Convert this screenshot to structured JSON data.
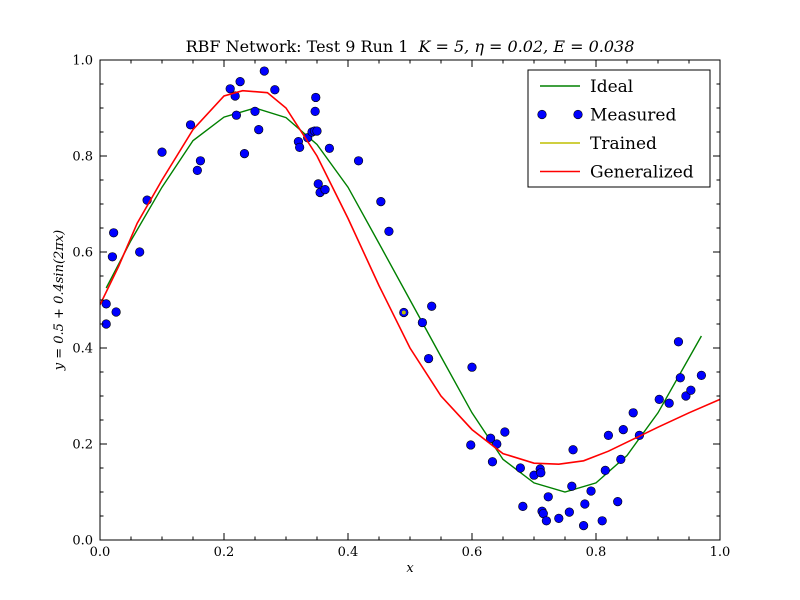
{
  "chart_data": {
    "type": "line",
    "title_prefix": "RBF Network: Test 9 Run 1",
    "title_math": "K = 5, η = 0.02, E = 0.038",
    "xlabel": "x",
    "ylabel": "y = 0.5 + 0.4sin(2πx)",
    "xlim": [
      0.0,
      1.0
    ],
    "ylim": [
      0.0,
      1.0
    ],
    "xticks": [
      "0.0",
      "0.2",
      "0.4",
      "0.6",
      "0.8",
      "1.0"
    ],
    "yticks": [
      "0.0",
      "0.2",
      "0.4",
      "0.6",
      "0.8",
      "1.0"
    ],
    "grid": false,
    "legend_position": "top-right",
    "legend": [
      "Ideal",
      "Measured",
      "Trained",
      "Generalized"
    ],
    "colors": {
      "ideal": "#008000",
      "measured": "#0000ff",
      "trained": "#bfbf00",
      "generalized": "#ff0000"
    },
    "series": [
      {
        "name": "Ideal",
        "type": "line",
        "x": [
          0.01,
          0.05,
          0.1,
          0.15,
          0.2,
          0.25,
          0.3,
          0.35,
          0.4,
          0.45,
          0.5,
          0.55,
          0.6,
          0.65,
          0.7,
          0.75,
          0.8,
          0.85,
          0.9,
          0.97
        ],
        "y": [
          0.525,
          0.624,
          0.735,
          0.832,
          0.881,
          0.9,
          0.88,
          0.824,
          0.735,
          0.618,
          0.5,
          0.382,
          0.265,
          0.168,
          0.119,
          0.1,
          0.119,
          0.176,
          0.265,
          0.425
        ]
      },
      {
        "name": "Generalized",
        "type": "line",
        "x": [
          0.0,
          0.03,
          0.06,
          0.1,
          0.15,
          0.2,
          0.23,
          0.27,
          0.3,
          0.35,
          0.4,
          0.45,
          0.5,
          0.55,
          0.6,
          0.65,
          0.7,
          0.74,
          0.78,
          0.82,
          0.86,
          0.9,
          0.95,
          1.0
        ],
        "y": [
          0.49,
          0.57,
          0.66,
          0.75,
          0.855,
          0.925,
          0.936,
          0.932,
          0.9,
          0.8,
          0.67,
          0.53,
          0.4,
          0.3,
          0.23,
          0.18,
          0.16,
          0.158,
          0.165,
          0.185,
          0.21,
          0.235,
          0.265,
          0.293
        ]
      },
      {
        "name": "Trained",
        "type": "scatter",
        "x": [
          0.49
        ],
        "y": [
          0.474
        ]
      },
      {
        "name": "Measured",
        "type": "scatter",
        "x": [
          0.01,
          0.01,
          0.02,
          0.022,
          0.026,
          0.064,
          0.076,
          0.1,
          0.146,
          0.157,
          0.162,
          0.21,
          0.218,
          0.22,
          0.226,
          0.233,
          0.25,
          0.256,
          0.265,
          0.282,
          0.32,
          0.322,
          0.335,
          0.342,
          0.346,
          0.347,
          0.348,
          0.35,
          0.352,
          0.355,
          0.363,
          0.37,
          0.417,
          0.453,
          0.466,
          0.49,
          0.52,
          0.53,
          0.535,
          0.598,
          0.6,
          0.63,
          0.633,
          0.64,
          0.653,
          0.678,
          0.682,
          0.7,
          0.71,
          0.711,
          0.713,
          0.715,
          0.72,
          0.723,
          0.74,
          0.757,
          0.761,
          0.763,
          0.78,
          0.782,
          0.792,
          0.81,
          0.815,
          0.82,
          0.835,
          0.84,
          0.844,
          0.86,
          0.87,
          0.902,
          0.918,
          0.933,
          0.936,
          0.945,
          0.953,
          0.97
        ],
        "y": [
          0.492,
          0.45,
          0.59,
          0.64,
          0.475,
          0.6,
          0.708,
          0.808,
          0.865,
          0.77,
          0.79,
          0.94,
          0.925,
          0.885,
          0.955,
          0.805,
          0.893,
          0.855,
          0.977,
          0.938,
          0.83,
          0.818,
          0.838,
          0.85,
          0.852,
          0.893,
          0.922,
          0.852,
          0.742,
          0.724,
          0.73,
          0.816,
          0.79,
          0.705,
          0.643,
          0.474,
          0.453,
          0.378,
          0.487,
          0.198,
          0.36,
          0.212,
          0.163,
          0.2,
          0.225,
          0.15,
          0.07,
          0.135,
          0.148,
          0.14,
          0.06,
          0.055,
          0.04,
          0.09,
          0.045,
          0.058,
          0.112,
          0.188,
          0.03,
          0.075,
          0.102,
          0.04,
          0.145,
          0.218,
          0.08,
          0.168,
          0.23,
          0.265,
          0.218,
          0.293,
          0.285,
          0.413,
          0.338,
          0.3,
          0.312,
          0.343
        ]
      }
    ]
  }
}
